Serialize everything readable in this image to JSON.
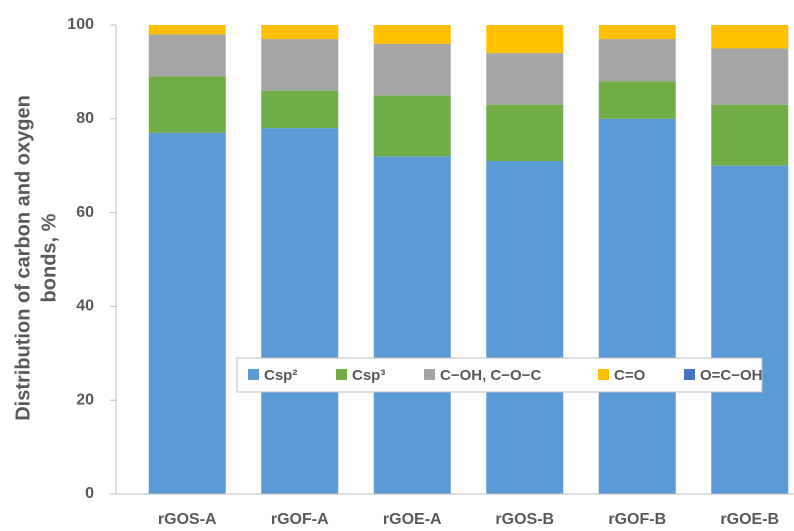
{
  "chart_data": {
    "type": "stacked_bar",
    "ylabel": [
      "Distribution of carbon and oxygen",
      "bonds, %"
    ],
    "categories": [
      "rGOS-A",
      "rGOF-A",
      "rGOE-A",
      "rGOS-B",
      "rGOF-B",
      "rGOE-B"
    ],
    "series": [
      {
        "name": "Csp²",
        "color": "#5b9bd5",
        "values": [
          77,
          78,
          72,
          71,
          80,
          70
        ]
      },
      {
        "name": "Csp³",
        "color": "#70ad47",
        "values": [
          12,
          8,
          13,
          12,
          8,
          13
        ]
      },
      {
        "name": "C−OH, C−O−C",
        "color": "#a5a5a5",
        "values": [
          9,
          11,
          11,
          11,
          9,
          12
        ]
      },
      {
        "name": "C=O",
        "color": "#ffc000",
        "values": [
          2,
          3,
          4,
          6,
          3,
          5
        ]
      },
      {
        "name": "O=C−OH",
        "color": "#4472c4",
        "values": [
          0,
          0,
          0,
          0,
          0,
          0
        ]
      }
    ],
    "ylim": [
      0,
      100
    ],
    "yticks": [
      0,
      20,
      40,
      60,
      80,
      100
    ]
  }
}
